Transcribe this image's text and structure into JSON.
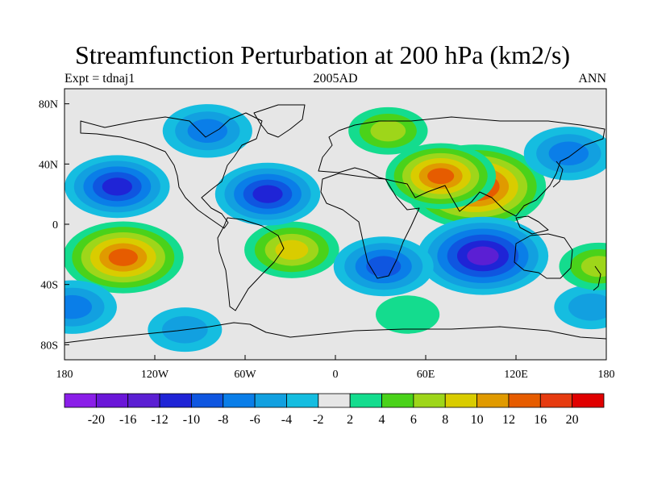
{
  "title": "Streamfunction Perturbation at 200 hPa (km2/s)",
  "subtitle_left": "Expt = tdnaj1",
  "subtitle_center": "2005AD",
  "subtitle_right": "ANN",
  "x_ticks": [
    "180",
    "120W",
    "60W",
    "0",
    "60E",
    "120E",
    "180"
  ],
  "y_ticks": [
    "80N",
    "40N",
    "0",
    "40S",
    "80S"
  ],
  "colorbar": {
    "labels": [
      "-20",
      "-16",
      "-12",
      "-10",
      "-8",
      "-6",
      "-4",
      "-2",
      "2",
      "4",
      "6",
      "8",
      "10",
      "12",
      "16",
      "20"
    ],
    "colors": [
      "#8a1ee8",
      "#6a16d8",
      "#5b1fd3",
      "#1f24d6",
      "#0f56e0",
      "#0a7ee8",
      "#12a0e0",
      "#15bde0",
      "#e6e6e6",
      "#14dc8e",
      "#4ad21a",
      "#9ed61a",
      "#d9cc00",
      "#e09a00",
      "#e65c00",
      "#e63b10",
      "#e00000"
    ]
  },
  "chart_data": {
    "type": "map-contour",
    "projection": "cylindrical-equidistant",
    "lon_range": [
      -180,
      180
    ],
    "lat_range": [
      -90,
      90
    ],
    "variable": "streamfunction perturbation",
    "level_hPa": 200,
    "units": "km2/s",
    "contour_levels": [
      -20,
      -16,
      -12,
      -10,
      -8,
      -6,
      -4,
      -2,
      2,
      4,
      6,
      8,
      10,
      12,
      16,
      20
    ],
    "features": [
      {
        "lon": 93,
        "lat": 25,
        "value": 18
      },
      {
        "lon": 70,
        "lat": 32,
        "value": 12
      },
      {
        "lon": 35,
        "lat": 62,
        "value": 6
      },
      {
        "lon": -141,
        "lat": -22,
        "value": 14
      },
      {
        "lon": -29,
        "lat": -17,
        "value": 9
      },
      {
        "lon": 48,
        "lat": -60,
        "value": 3
      },
      {
        "lon": 98,
        "lat": -21,
        "value": -16
      },
      {
        "lon": 32,
        "lat": -28,
        "value": -10
      },
      {
        "lon": -145,
        "lat": 25,
        "value": -11
      },
      {
        "lon": -45,
        "lat": 20,
        "value": -11
      },
      {
        "lon": -85,
        "lat": 62,
        "value": -8
      },
      {
        "lon": 155,
        "lat": 47,
        "value": -8
      },
      {
        "lon": -175,
        "lat": -55,
        "value": -8
      },
      {
        "lon": 170,
        "lat": -55,
        "value": -5
      },
      {
        "lon": 175,
        "lat": -28,
        "value": 6
      },
      {
        "lon": -100,
        "lat": -70,
        "value": -5
      }
    ]
  }
}
